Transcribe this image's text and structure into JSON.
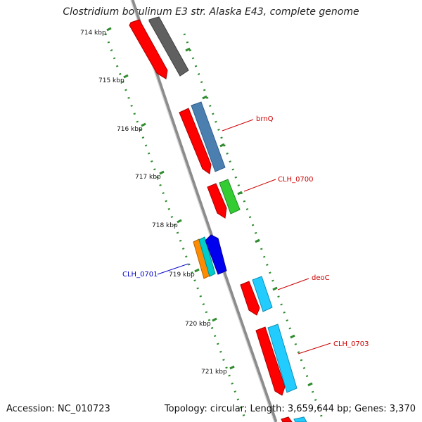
{
  "title": "Clostridium botulinum E3 str. Alaska E43, complete genome",
  "footer": {
    "accession": "Accession: NC_010723",
    "summary": "Topology: circular; Length: 3,659,644 bp; Genes: 3,370"
  },
  "ticks": [
    {
      "label": "714 kbp"
    },
    {
      "label": "715 kbp"
    },
    {
      "label": "716 kbp"
    },
    {
      "label": "717 kbp"
    },
    {
      "label": "718 kbp"
    },
    {
      "label": "719 kbp"
    },
    {
      "label": "720 kbp"
    },
    {
      "label": "721 kbp"
    }
  ],
  "gene_labels": [
    {
      "text": "brnQ",
      "color": "#cc0000"
    },
    {
      "text": "CLH_0700",
      "color": "#cc0000"
    },
    {
      "text": "CLH_0701",
      "color": "#0000cc"
    },
    {
      "text": "deoC",
      "color": "#cc0000"
    },
    {
      "text": "CLH_0703",
      "color": "#cc0000"
    }
  ],
  "colors": {
    "backbone": "#8c8c8c",
    "tick_dots": "#2e8b2e",
    "cds_red": "#ff0000",
    "gray_feature": "#606060",
    "steel_blue": "#4a7fb0",
    "green": "#33cc33",
    "orange": "#ff8c00",
    "cyan": "#00cccc",
    "blue": "#0000ee",
    "sky": "#22ccff"
  }
}
